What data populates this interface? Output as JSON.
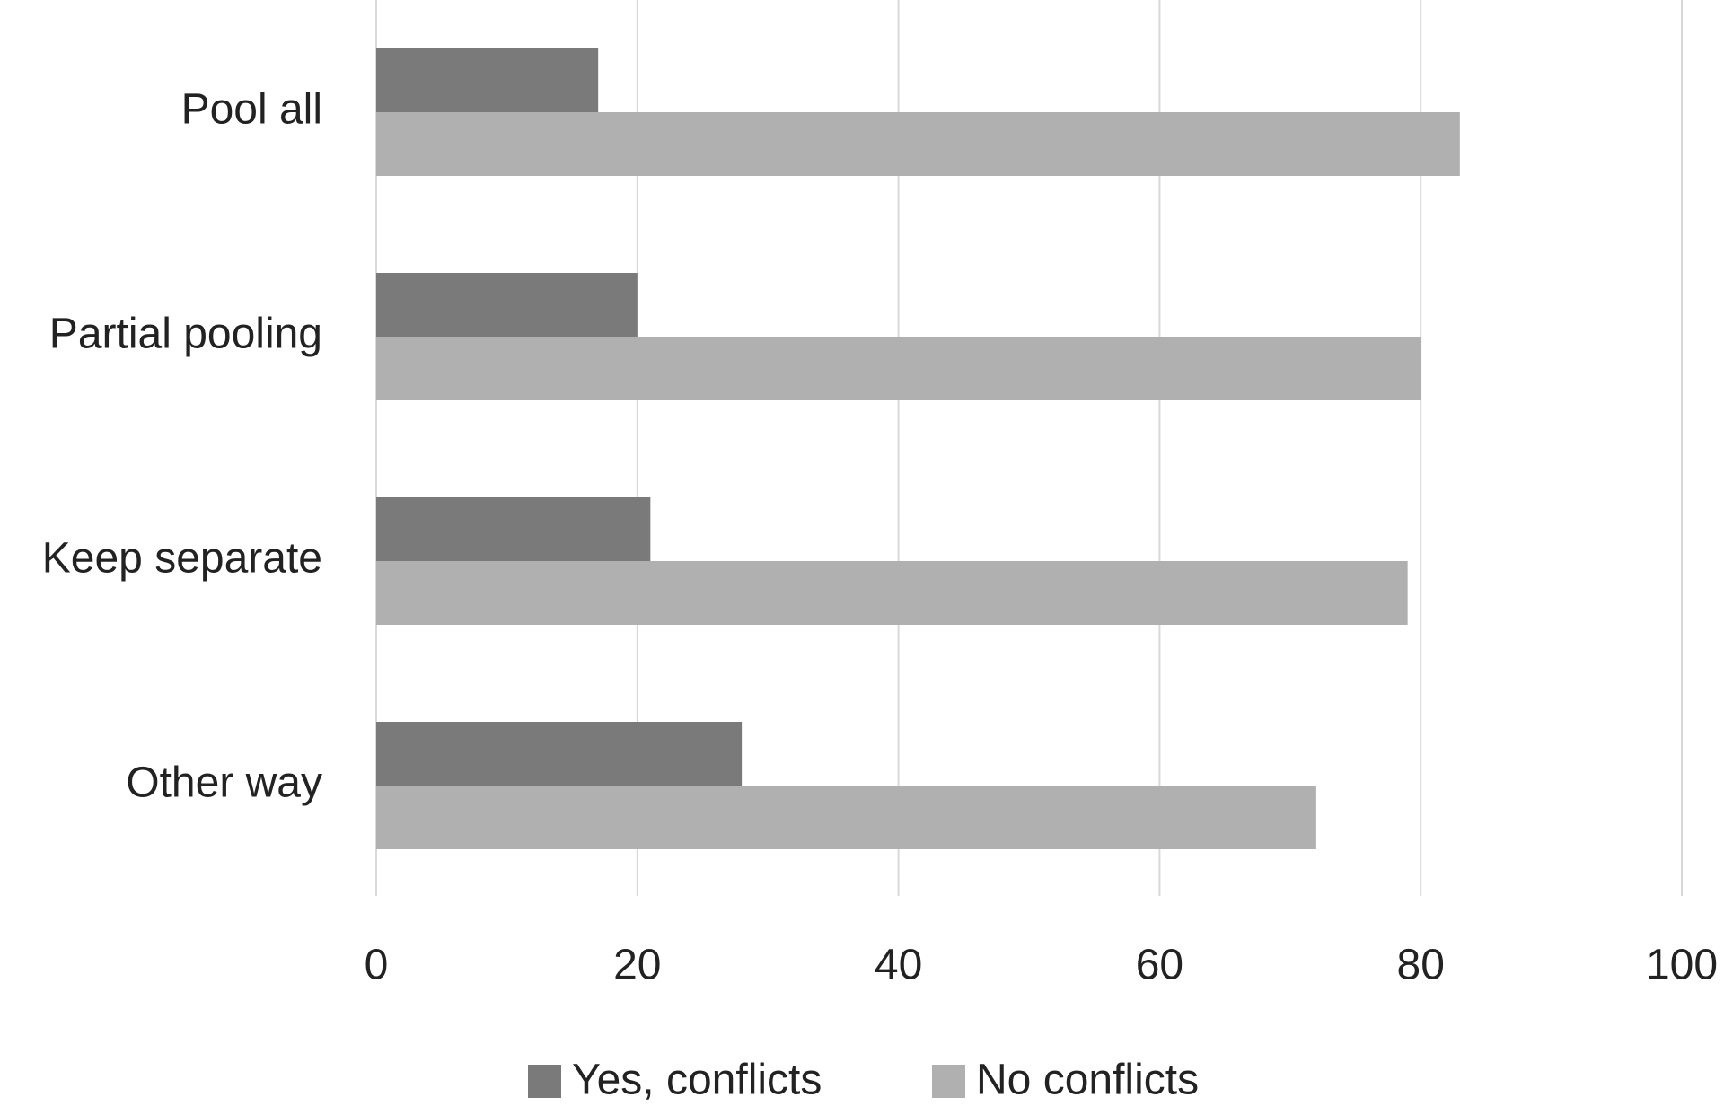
{
  "chart_data": {
    "type": "bar",
    "orientation": "horizontal",
    "categories": [
      "Pool all",
      "Partial pooling",
      "Keep separate",
      "Other way"
    ],
    "series": [
      {
        "name": "Yes, conflicts",
        "color": "#7a7a7a",
        "values": [
          17,
          20,
          21,
          28
        ]
      },
      {
        "name": "No conflicts",
        "color": "#b0b0b0",
        "values": [
          83,
          80,
          79,
          72
        ]
      }
    ],
    "xlim": [
      0,
      100
    ],
    "xticks": [
      0,
      20,
      40,
      60,
      80,
      100
    ],
    "grid": true,
    "legend": "bottom"
  }
}
